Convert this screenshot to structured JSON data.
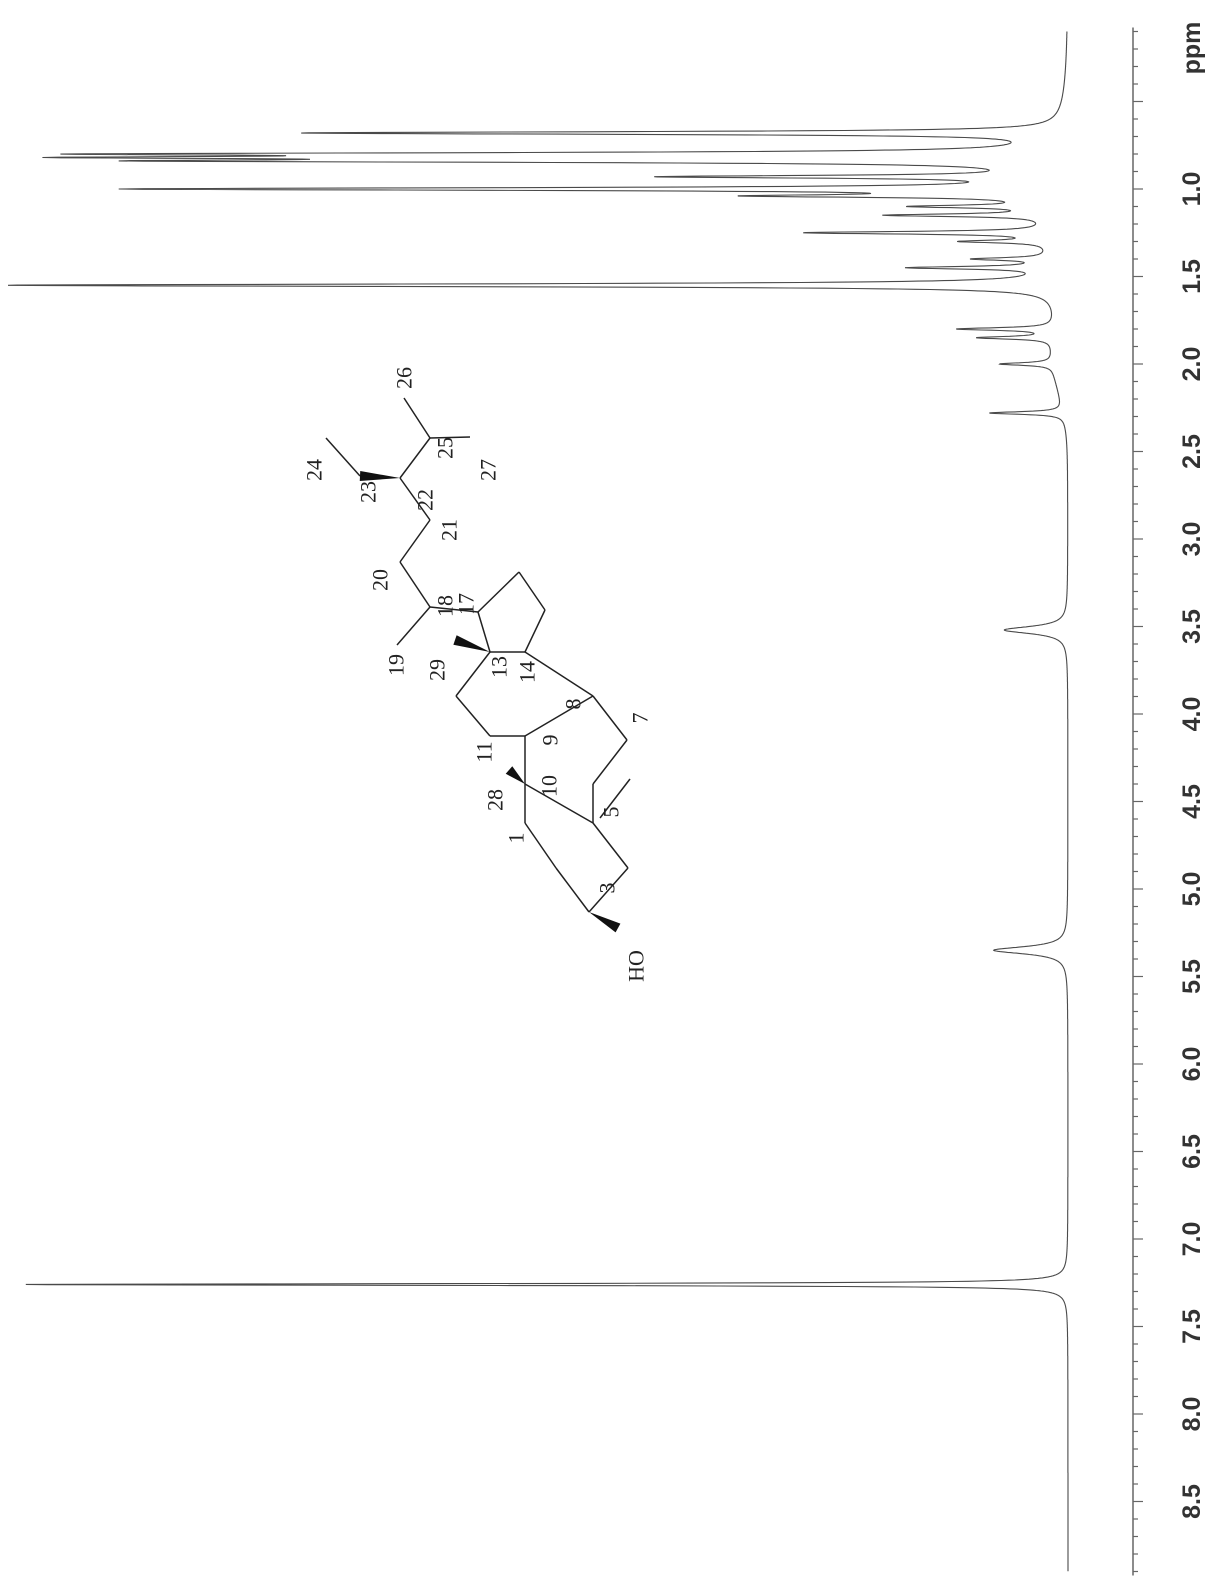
{
  "chart_data": {
    "type": "line",
    "title": "",
    "xlabel": "ppm",
    "ylabel": "",
    "x_axis": {
      "label": "ppm",
      "range": [
        0.1,
        8.9
      ],
      "reversed": false,
      "tick_labels": [
        "1.0",
        "1.5",
        "2.0",
        "2.5",
        "3.0",
        "3.5",
        "4.0",
        "4.5",
        "5.0",
        "5.5",
        "6.0",
        "6.5",
        "7.0",
        "7.5",
        "8.0",
        "8.5"
      ]
    },
    "grid": false,
    "peaks": [
      {
        "ppm": 0.68,
        "intensity": 0.71
      },
      {
        "ppm": 0.8,
        "intensity": 0.78
      },
      {
        "ppm": 0.82,
        "intensity": 0.7
      },
      {
        "ppm": 0.84,
        "intensity": 0.72
      },
      {
        "ppm": 0.93,
        "intensity": 0.35
      },
      {
        "ppm": 1.0,
        "intensity": 0.86
      },
      {
        "ppm": 1.04,
        "intensity": 0.25
      },
      {
        "ppm": 1.1,
        "intensity": 0.12
      },
      {
        "ppm": 1.15,
        "intensity": 0.15
      },
      {
        "ppm": 1.25,
        "intensity": 0.23
      },
      {
        "ppm": 1.3,
        "intensity": 0.08
      },
      {
        "ppm": 1.4,
        "intensity": 0.07
      },
      {
        "ppm": 1.45,
        "intensity": 0.13
      },
      {
        "ppm": 1.55,
        "intensity": 0.99
      },
      {
        "ppm": 1.8,
        "intensity": 0.09
      },
      {
        "ppm": 1.85,
        "intensity": 0.07
      },
      {
        "ppm": 2.0,
        "intensity": 0.05
      },
      {
        "ppm": 2.28,
        "intensity": 0.07
      },
      {
        "ppm": 3.52,
        "intensity": 0.06
      },
      {
        "ppm": 5.35,
        "intensity": 0.07
      },
      {
        "ppm": 7.26,
        "intensity": 0.99
      }
    ],
    "structure_labels": {
      "locants": [
        "1",
        "3",
        "5",
        "7",
        "8",
        "9",
        "10",
        "11",
        "13",
        "14",
        "17",
        "18",
        "19",
        "20",
        "21",
        "22",
        "23",
        "24",
        "25",
        "26",
        "27",
        "28",
        "29"
      ],
      "group": "HO"
    }
  }
}
